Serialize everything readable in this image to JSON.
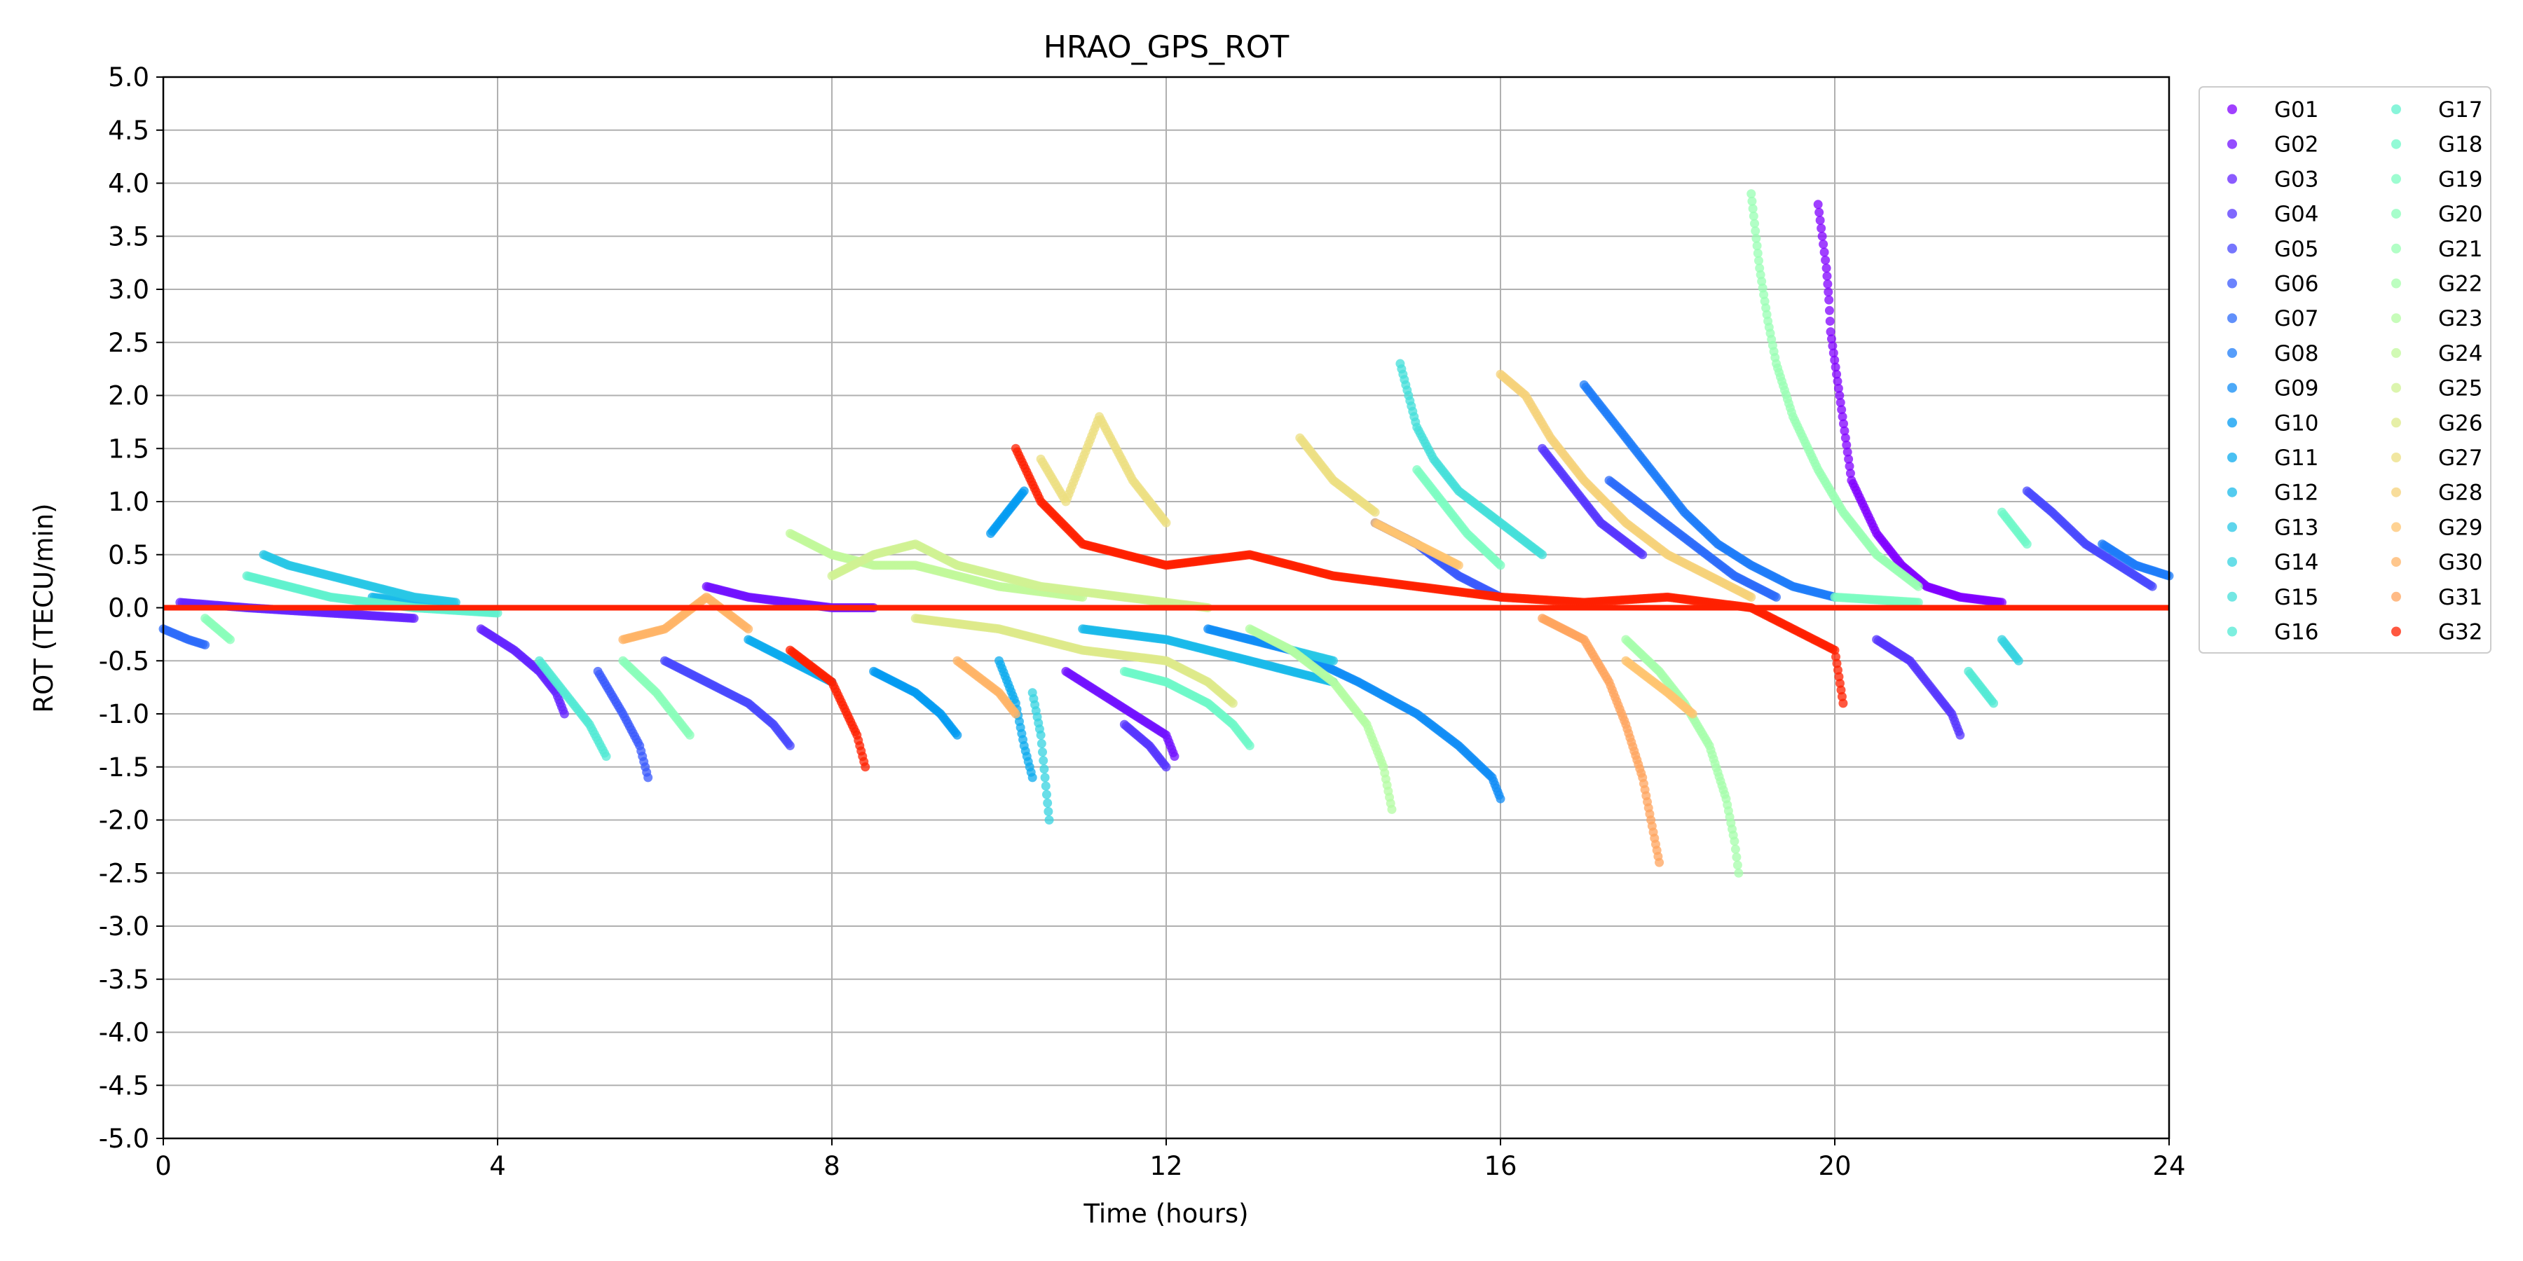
{
  "chart_data": {
    "type": "scatter",
    "title": "HRAO_GPS_ROT",
    "xlabel": "Time (hours)",
    "ylabel": "ROT (TECU/min)",
    "xlim": [
      0,
      24
    ],
    "ylim": [
      -5.0,
      5.0
    ],
    "xticks": [
      "0",
      "4",
      "8",
      "12",
      "16",
      "20",
      "24"
    ],
    "yticks": [
      "-5.0",
      "-4.5",
      "-4.0",
      "-3.5",
      "-3.0",
      "-2.5",
      "-2.0",
      "-1.5",
      "-1.0",
      "-0.5",
      "0.0",
      "0.5",
      "1.0",
      "1.5",
      "2.0",
      "2.5",
      "3.0",
      "3.5",
      "4.0",
      "4.5",
      "5.0"
    ],
    "grid": true,
    "legend_position": "outside-right",
    "colormap": "rainbow",
    "horizontal_reference_line": {
      "y": 0.0,
      "color": "#ff2000"
    },
    "series": [
      {
        "name": "G01",
        "color": "#8000ff",
        "points": [
          [
            19.8,
            3.8
          ],
          [
            19.85,
            3.5
          ],
          [
            19.9,
            3.2
          ],
          [
            19.93,
            2.9
          ],
          [
            19.95,
            2.6
          ],
          [
            20.2,
            1.2
          ],
          [
            20.5,
            0.7
          ],
          [
            20.8,
            0.4
          ],
          [
            21.1,
            0.2
          ],
          [
            21.5,
            0.1
          ],
          [
            22.0,
            0.05
          ]
        ]
      },
      {
        "name": "G02",
        "color": "#7212ff",
        "points": [
          [
            10.8,
            -0.6
          ],
          [
            11.2,
            -0.8
          ],
          [
            11.6,
            -1.0
          ],
          [
            12.0,
            -1.2
          ],
          [
            12.1,
            -1.4
          ],
          [
            6.5,
            0.2
          ],
          [
            7.0,
            0.1
          ],
          [
            7.5,
            0.05
          ],
          [
            8.0,
            0.0
          ],
          [
            8.5,
            0.0
          ]
        ]
      },
      {
        "name": "G03",
        "color": "#6424ff",
        "points": [
          [
            3.8,
            -0.2
          ],
          [
            4.2,
            -0.4
          ],
          [
            4.5,
            -0.6
          ],
          [
            4.7,
            -0.8
          ],
          [
            4.8,
            -1.0
          ],
          [
            0.2,
            0.05
          ],
          [
            1.0,
            0.0
          ],
          [
            2.0,
            -0.05
          ],
          [
            3.0,
            -0.1
          ]
        ]
      },
      {
        "name": "G04",
        "color": "#5636fe",
        "points": [
          [
            20.5,
            -0.3
          ],
          [
            20.9,
            -0.5
          ],
          [
            21.2,
            -0.8
          ],
          [
            21.4,
            -1.0
          ],
          [
            21.5,
            -1.2
          ],
          [
            12.0,
            -1.5
          ],
          [
            11.8,
            -1.3
          ],
          [
            11.5,
            -1.1
          ],
          [
            16.5,
            1.5
          ],
          [
            16.8,
            1.2
          ],
          [
            17.2,
            0.8
          ],
          [
            17.7,
            0.5
          ]
        ]
      },
      {
        "name": "G05",
        "color": "#4848fd",
        "points": [
          [
            6.0,
            -0.5
          ],
          [
            6.5,
            -0.7
          ],
          [
            7.0,
            -0.9
          ],
          [
            7.3,
            -1.1
          ],
          [
            7.5,
            -1.3
          ],
          [
            22.3,
            1.1
          ],
          [
            22.6,
            0.9
          ],
          [
            23.0,
            0.6
          ],
          [
            23.4,
            0.4
          ],
          [
            23.8,
            0.2
          ]
        ]
      },
      {
        "name": "G06",
        "color": "#3a5afc",
        "points": [
          [
            5.2,
            -0.6
          ],
          [
            5.5,
            -1.0
          ],
          [
            5.7,
            -1.3
          ],
          [
            5.8,
            -1.6
          ],
          [
            14.5,
            0.8
          ],
          [
            15.0,
            0.6
          ],
          [
            15.5,
            0.3
          ],
          [
            16.0,
            0.1
          ]
        ]
      },
      {
        "name": "G07",
        "color": "#2c6bfa",
        "points": [
          [
            17.3,
            1.2
          ],
          [
            17.8,
            0.9
          ],
          [
            18.3,
            0.6
          ],
          [
            18.8,
            0.3
          ],
          [
            19.3,
            0.1
          ],
          [
            0.0,
            -0.2
          ],
          [
            0.3,
            -0.3
          ],
          [
            0.5,
            -0.35
          ]
        ]
      },
      {
        "name": "G08",
        "color": "#1e7cf8",
        "points": [
          [
            17.0,
            2.1
          ],
          [
            17.3,
            1.8
          ],
          [
            17.6,
            1.5
          ],
          [
            17.9,
            1.2
          ],
          [
            18.2,
            0.9
          ],
          [
            18.6,
            0.6
          ],
          [
            19.0,
            0.4
          ],
          [
            19.5,
            0.2
          ],
          [
            20.0,
            0.1
          ],
          [
            23.2,
            0.6
          ],
          [
            23.6,
            0.4
          ],
          [
            24.0,
            0.3
          ]
        ]
      },
      {
        "name": "G09",
        "color": "#108cf5",
        "points": [
          [
            12.5,
            -0.2
          ],
          [
            13.5,
            -0.4
          ],
          [
            14.3,
            -0.7
          ],
          [
            15.0,
            -1.0
          ],
          [
            15.5,
            -1.3
          ],
          [
            15.9,
            -1.6
          ],
          [
            16.0,
            -1.8
          ]
        ]
      },
      {
        "name": "G10",
        "color": "#039bf2",
        "points": [
          [
            9.9,
            0.7
          ],
          [
            10.1,
            0.9
          ],
          [
            10.3,
            1.1
          ],
          [
            8.5,
            -0.6
          ],
          [
            9.0,
            -0.8
          ],
          [
            9.3,
            -1.0
          ],
          [
            9.5,
            -1.2
          ]
        ]
      },
      {
        "name": "G11",
        "color": "#0cabee",
        "points": [
          [
            10.0,
            -0.5
          ],
          [
            10.2,
            -0.9
          ],
          [
            10.3,
            -1.3
          ],
          [
            10.4,
            -1.6
          ],
          [
            7.0,
            -0.3
          ],
          [
            7.5,
            -0.5
          ],
          [
            8.0,
            -0.7
          ]
        ]
      },
      {
        "name": "G12",
        "color": "#1ab9ea",
        "points": [
          [
            11.0,
            -0.2
          ],
          [
            12.0,
            -0.3
          ],
          [
            13.0,
            -0.5
          ],
          [
            14.0,
            -0.7
          ],
          [
            2.5,
            0.1
          ],
          [
            3.0,
            0.05
          ],
          [
            3.5,
            0.0
          ]
        ]
      },
      {
        "name": "G13",
        "color": "#28c7e5",
        "points": [
          [
            1.2,
            0.5
          ],
          [
            1.5,
            0.4
          ],
          [
            2.0,
            0.3
          ],
          [
            2.5,
            0.2
          ],
          [
            3.0,
            0.1
          ],
          [
            3.5,
            0.05
          ],
          [
            13.5,
            -0.4
          ],
          [
            14.0,
            -0.5
          ]
        ]
      },
      {
        "name": "G14",
        "color": "#36d3e0",
        "points": [
          [
            10.4,
            -0.8
          ],
          [
            10.5,
            -1.2
          ],
          [
            10.55,
            -1.6
          ],
          [
            10.6,
            -2.0
          ],
          [
            22.0,
            -0.3
          ],
          [
            22.2,
            -0.5
          ]
        ]
      },
      {
        "name": "G15",
        "color": "#44dfda",
        "points": [
          [
            14.8,
            2.3
          ],
          [
            14.9,
            2.0
          ],
          [
            15.0,
            1.7
          ],
          [
            15.2,
            1.4
          ],
          [
            15.5,
            1.1
          ],
          [
            16.0,
            0.8
          ],
          [
            16.5,
            0.5
          ]
        ]
      },
      {
        "name": "G16",
        "color": "#52e9d4",
        "points": [
          [
            4.5,
            -0.5
          ],
          [
            4.8,
            -0.8
          ],
          [
            5.1,
            -1.1
          ],
          [
            5.3,
            -1.4
          ],
          [
            21.6,
            -0.6
          ],
          [
            21.9,
            -0.9
          ]
        ]
      },
      {
        "name": "G17",
        "color": "#60f1ce",
        "points": [
          [
            1.0,
            0.3
          ],
          [
            1.5,
            0.2
          ],
          [
            2.0,
            0.1
          ],
          [
            3.0,
            0.0
          ],
          [
            4.0,
            -0.05
          ]
        ]
      },
      {
        "name": "G18",
        "color": "#6ef8c8",
        "points": [
          [
            11.5,
            -0.6
          ],
          [
            12.0,
            -0.7
          ],
          [
            12.5,
            -0.9
          ],
          [
            12.8,
            -1.1
          ],
          [
            13.0,
            -1.3
          ],
          [
            22.0,
            0.9
          ],
          [
            22.3,
            0.6
          ]
        ]
      },
      {
        "name": "G19",
        "color": "#7cfcc1",
        "points": [
          [
            15.0,
            1.3
          ],
          [
            15.3,
            1.0
          ],
          [
            15.6,
            0.7
          ],
          [
            16.0,
            0.4
          ],
          [
            20.0,
            0.1
          ],
          [
            21.0,
            0.05
          ]
        ]
      },
      {
        "name": "G20",
        "color": "#8afeba",
        "points": [
          [
            5.5,
            -0.5
          ],
          [
            5.9,
            -0.8
          ],
          [
            6.2,
            -1.1
          ],
          [
            6.3,
            -1.2
          ],
          [
            0.5,
            -0.1
          ],
          [
            0.8,
            -0.3
          ]
        ]
      },
      {
        "name": "G21",
        "color": "#98ffb3",
        "points": [
          [
            19.0,
            3.9
          ],
          [
            19.1,
            3.2
          ],
          [
            19.2,
            2.7
          ],
          [
            19.3,
            2.3
          ],
          [
            19.5,
            1.8
          ],
          [
            19.8,
            1.3
          ],
          [
            20.1,
            0.9
          ],
          [
            20.5,
            0.5
          ],
          [
            21.0,
            0.2
          ]
        ]
      },
      {
        "name": "G22",
        "color": "#a6feab",
        "points": [
          [
            17.5,
            -0.3
          ],
          [
            17.9,
            -0.6
          ],
          [
            18.2,
            -0.9
          ],
          [
            18.5,
            -1.3
          ],
          [
            18.7,
            -1.8
          ],
          [
            18.8,
            -2.2
          ],
          [
            18.85,
            -2.5
          ]
        ]
      },
      {
        "name": "G23",
        "color": "#b4fca3",
        "points": [
          [
            13.0,
            -0.2
          ],
          [
            13.5,
            -0.4
          ],
          [
            14.0,
            -0.7
          ],
          [
            14.4,
            -1.1
          ],
          [
            14.6,
            -1.5
          ],
          [
            14.7,
            -1.9
          ]
        ]
      },
      {
        "name": "G24",
        "color": "#c2f89b",
        "points": [
          [
            7.5,
            0.7
          ],
          [
            8.0,
            0.5
          ],
          [
            8.5,
            0.4
          ],
          [
            9.0,
            0.4
          ],
          [
            9.5,
            0.3
          ],
          [
            10.0,
            0.2
          ],
          [
            11.0,
            0.1
          ]
        ]
      },
      {
        "name": "G25",
        "color": "#d0f193",
        "points": [
          [
            8.0,
            0.3
          ],
          [
            8.5,
            0.5
          ],
          [
            9.0,
            0.6
          ],
          [
            9.5,
            0.4
          ],
          [
            10.5,
            0.2
          ],
          [
            11.5,
            0.1
          ],
          [
            12.5,
            0.0
          ]
        ]
      },
      {
        "name": "G26",
        "color": "#deea8a",
        "points": [
          [
            9.0,
            -0.1
          ],
          [
            10.0,
            -0.2
          ],
          [
            11.0,
            -0.4
          ],
          [
            12.0,
            -0.5
          ],
          [
            12.5,
            -0.7
          ],
          [
            12.8,
            -0.9
          ]
        ]
      },
      {
        "name": "G27",
        "color": "#ecdf82",
        "points": [
          [
            10.5,
            1.4
          ],
          [
            10.8,
            1.0
          ],
          [
            11.2,
            1.8
          ],
          [
            11.6,
            1.2
          ],
          [
            12.0,
            0.8
          ],
          [
            13.6,
            1.6
          ],
          [
            14.0,
            1.2
          ],
          [
            14.5,
            0.9
          ]
        ]
      },
      {
        "name": "G28",
        "color": "#f6d279",
        "points": [
          [
            16.0,
            2.2
          ],
          [
            16.3,
            2.0
          ],
          [
            16.6,
            1.6
          ],
          [
            17.0,
            1.2
          ],
          [
            17.5,
            0.8
          ],
          [
            18.0,
            0.5
          ],
          [
            18.5,
            0.3
          ],
          [
            19.0,
            0.1
          ]
        ]
      },
      {
        "name": "G29",
        "color": "#ffc470",
        "points": [
          [
            14.5,
            0.8
          ],
          [
            15.0,
            0.6
          ],
          [
            15.5,
            0.4
          ],
          [
            17.5,
            -0.5
          ],
          [
            18.0,
            -0.8
          ],
          [
            18.3,
            -1.0
          ]
        ]
      },
      {
        "name": "G30",
        "color": "#ffb467",
        "points": [
          [
            5.5,
            -0.3
          ],
          [
            6.0,
            -0.2
          ],
          [
            6.5,
            0.1
          ],
          [
            7.0,
            -0.2
          ],
          [
            9.5,
            -0.5
          ],
          [
            10.0,
            -0.8
          ],
          [
            10.2,
            -1.0
          ]
        ]
      },
      {
        "name": "G31",
        "color": "#ffa45e",
        "points": [
          [
            16.5,
            -0.1
          ],
          [
            17.0,
            -0.3
          ],
          [
            17.3,
            -0.7
          ],
          [
            17.5,
            -1.1
          ],
          [
            17.7,
            -1.6
          ],
          [
            17.8,
            -2.0
          ],
          [
            17.9,
            -2.4
          ]
        ]
      },
      {
        "name": "G32",
        "color": "#ff2000",
        "points": [
          [
            10.2,
            1.5
          ],
          [
            10.5,
            1.0
          ],
          [
            11.0,
            0.6
          ],
          [
            12.0,
            0.4
          ],
          [
            13.0,
            0.5
          ],
          [
            14.0,
            0.3
          ],
          [
            15.0,
            0.2
          ],
          [
            16.0,
            0.1
          ],
          [
            17.0,
            0.05
          ],
          [
            18.0,
            0.1
          ],
          [
            19.0,
            0.0
          ],
          [
            20.0,
            -0.4
          ],
          [
            20.1,
            -0.9
          ],
          [
            7.5,
            -0.4
          ],
          [
            8.0,
            -0.7
          ],
          [
            8.3,
            -1.2
          ],
          [
            8.4,
            -1.5
          ]
        ]
      }
    ]
  }
}
